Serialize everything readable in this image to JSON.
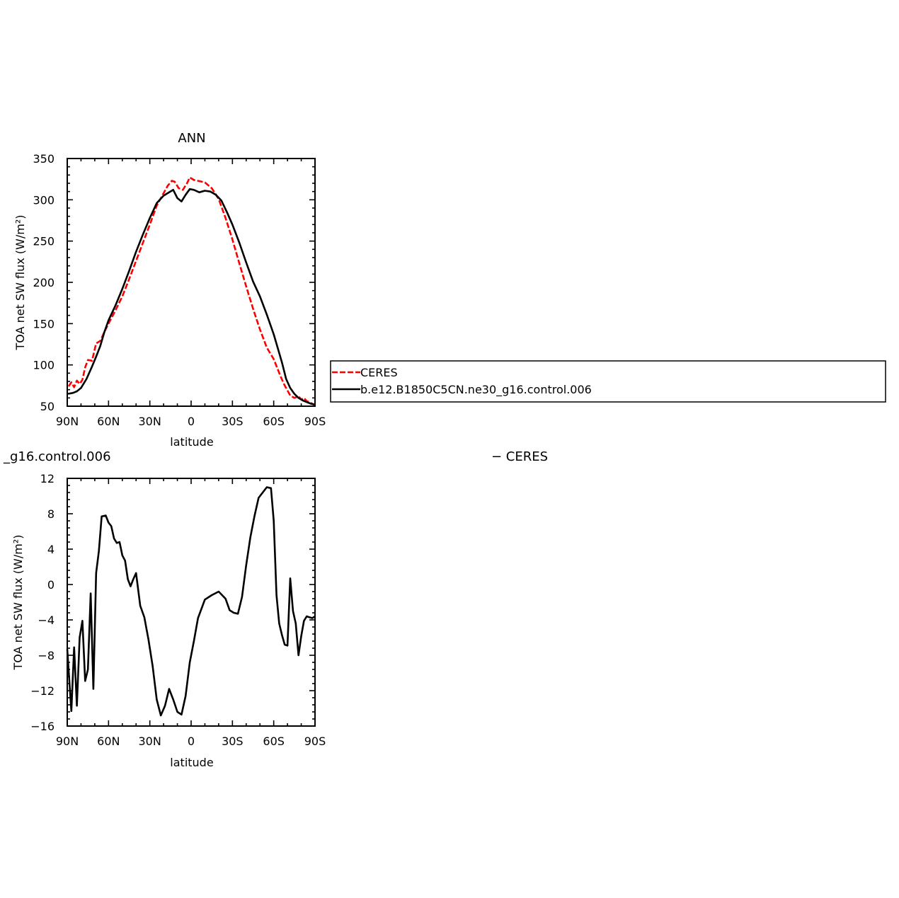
{
  "chart_data": [
    {
      "type": "line",
      "title": "ANN",
      "xlabel": "latitude",
      "ylabel": "TOA net SW flux (W/m²)",
      "xlim": [
        90,
        -90
      ],
      "ylim": [
        50,
        350
      ],
      "x_ticks": [
        90,
        60,
        30,
        0,
        -30,
        -60,
        -90
      ],
      "x_tick_labels": [
        "90N",
        "60N",
        "30N",
        "0",
        "30S",
        "60S",
        "90S"
      ],
      "y_ticks": [
        50,
        100,
        150,
        200,
        250,
        300,
        350
      ],
      "y_tick_labels": [
        "50",
        "100",
        "150",
        "200",
        "250",
        "300",
        "350"
      ],
      "grid": false,
      "legend": "right",
      "series": [
        {
          "name": "CERES",
          "color": "#ff0000",
          "dash": "dashed",
          "x": [
            89,
            87,
            85,
            83,
            81,
            79,
            77,
            75,
            72,
            69,
            66,
            63,
            60,
            55,
            50,
            45,
            40,
            35,
            30,
            25,
            20,
            17,
            14,
            12,
            9,
            6,
            3,
            1,
            -2,
            -5,
            -10,
            -15,
            -20,
            -25,
            -30,
            -35,
            -40,
            -45,
            -50,
            -55,
            -60,
            -65,
            -68,
            -72,
            -75,
            -78,
            -80,
            -82,
            -84,
            -86,
            -88,
            -89.5
          ],
          "y": [
            74,
            79,
            73,
            81,
            77,
            82,
            97,
            106,
            105,
            126,
            129,
            140,
            150,
            166,
            183,
            204,
            226,
            248,
            270,
            293,
            308,
            317,
            323,
            322,
            314,
            312,
            320,
            327,
            324,
            323,
            321,
            314,
            301,
            278,
            252,
            223,
            195,
            168,
            143,
            121,
            107,
            86,
            75,
            63,
            60,
            62,
            58,
            60,
            56,
            55,
            53,
            52
          ]
        },
        {
          "name": "b.e12.B1850C5CN.ne30_g16.control.006",
          "color": "#000000",
          "dash": "solid",
          "x": [
            89.5,
            86,
            83,
            80,
            76,
            72,
            69,
            66,
            63,
            60,
            55,
            50,
            45,
            40,
            35,
            30,
            25,
            20,
            16,
            13,
            10,
            7,
            4,
            1,
            -2,
            -6,
            -10,
            -14,
            -18,
            -22,
            -26,
            -30,
            -35,
            -40,
            -45,
            -50,
            -55,
            -60,
            -63,
            -66,
            -69,
            -72,
            -75,
            -78,
            -81,
            -84,
            -87,
            -89.5
          ],
          "y": [
            65,
            66,
            68,
            72,
            83,
            98,
            110,
            123,
            140,
            154,
            172,
            192,
            214,
            237,
            258,
            278,
            296,
            305,
            309,
            312,
            302,
            298,
            306,
            313,
            312,
            309,
            311,
            310,
            306,
            299,
            285,
            270,
            248,
            224,
            201,
            183,
            161,
            137,
            120,
            103,
            83,
            72,
            65,
            60,
            57,
            55,
            53,
            52
          ]
        }
      ]
    },
    {
      "type": "line",
      "title": "_g16.control.006",
      "title_right": "− CERES",
      "xlabel": "latitude",
      "ylabel": "TOA net SW flux (W/m²)",
      "xlim": [
        90,
        -90
      ],
      "ylim": [
        -16,
        12
      ],
      "x_ticks": [
        90,
        60,
        30,
        0,
        -30,
        -60,
        -90
      ],
      "x_tick_labels": [
        "90N",
        "60N",
        "30N",
        "0",
        "30S",
        "60S",
        "90S"
      ],
      "y_ticks": [
        -16,
        -12,
        -8,
        -4,
        0,
        4,
        8,
        12
      ],
      "y_tick_labels": [
        "−16",
        "−12",
        "−8",
        "−4",
        "0",
        "4",
        "8",
        "12"
      ],
      "grid": false,
      "series": [
        {
          "color": "#000000",
          "dash": "solid",
          "x": [
            90,
            87,
            85,
            83,
            81,
            79,
            77,
            75,
            73,
            71,
            69,
            67,
            65,
            62,
            60,
            58,
            56,
            54,
            52,
            50,
            48,
            46,
            44,
            42,
            40,
            37,
            34,
            31,
            28,
            25,
            22,
            19,
            16,
            13,
            10,
            7,
            4,
            1,
            -2,
            -5,
            -10,
            -15,
            -20,
            -25,
            -28,
            -31,
            -34,
            -37,
            -40,
            -43,
            -46,
            -49,
            -52,
            -55,
            -58,
            -60,
            -62,
            -64,
            -66,
            -68,
            -70,
            -72,
            -74,
            -76,
            -78,
            -80,
            -82,
            -84,
            -86,
            -88,
            -90
          ],
          "y": [
            -7.3,
            -14.3,
            -7.1,
            -13.7,
            -6.0,
            -4.1,
            -10.9,
            -9.6,
            -1.0,
            -11.8,
            1.3,
            3.8,
            7.7,
            7.8,
            7.0,
            6.6,
            5.2,
            4.7,
            4.8,
            3.3,
            2.7,
            0.6,
            -0.2,
            0.6,
            1.3,
            -2.4,
            -3.7,
            -6.2,
            -9.2,
            -13.0,
            -14.8,
            -13.7,
            -11.8,
            -13.0,
            -14.4,
            -14.7,
            -12.6,
            -8.8,
            -6.4,
            -3.8,
            -1.7,
            -1.2,
            -0.8,
            -1.6,
            -2.9,
            -3.2,
            -3.3,
            -1.4,
            2.2,
            5.3,
            7.7,
            9.8,
            10.4,
            11.0,
            10.9,
            7.2,
            -1.2,
            -4.4,
            -5.7,
            -6.8,
            -6.9,
            0.7,
            -3.0,
            -4.4,
            -8.0,
            -5.8,
            -4.1,
            -3.6,
            -3.7,
            -3.8,
            -3.6
          ]
        }
      ]
    }
  ]
}
